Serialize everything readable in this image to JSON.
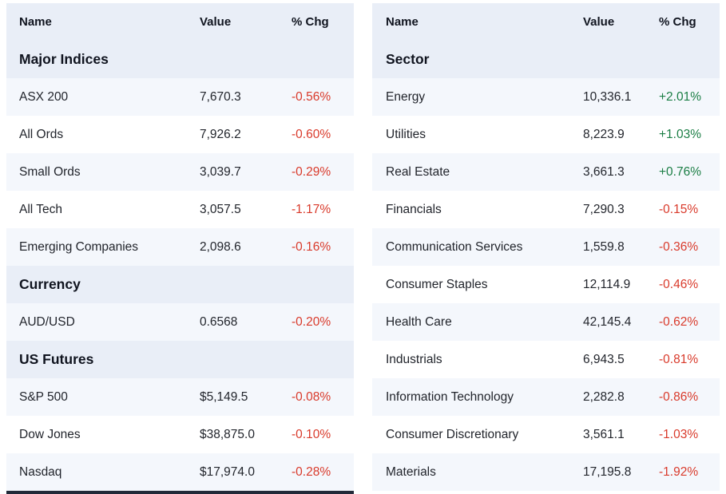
{
  "columns": {
    "name": "Name",
    "value": "Value",
    "chg": "% Chg"
  },
  "colors": {
    "positive": "#1b7e45",
    "negative": "#d93a2b",
    "header_bg": "#e9eef7",
    "stripe_bg": "#f4f7fc"
  },
  "tables": [
    {
      "name": "indices-table",
      "partial_row_visible": true,
      "sections": [
        {
          "label": "Major Indices",
          "rows": [
            {
              "name": "ASX 200",
              "value": "7,670.3",
              "chg": "-0.56%"
            },
            {
              "name": "All Ords",
              "value": "7,926.2",
              "chg": "-0.60%"
            },
            {
              "name": "Small Ords",
              "value": "3,039.7",
              "chg": "-0.29%"
            },
            {
              "name": "All Tech",
              "value": "3,057.5",
              "chg": "-1.17%"
            },
            {
              "name": "Emerging Companies",
              "value": "2,098.6",
              "chg": "-0.16%"
            }
          ]
        },
        {
          "label": "Currency",
          "rows": [
            {
              "name": "AUD/USD",
              "value": "0.6568",
              "chg": "-0.20%"
            }
          ]
        },
        {
          "label": "US Futures",
          "rows": [
            {
              "name": "S&P 500",
              "value": "$5,149.5",
              "chg": "-0.08%"
            },
            {
              "name": "Dow Jones",
              "value": "$38,875.0",
              "chg": "-0.10%"
            },
            {
              "name": "Nasdaq",
              "value": "$17,974.0",
              "chg": "-0.28%"
            }
          ]
        }
      ]
    },
    {
      "name": "sector-table",
      "partial_row_visible": false,
      "sections": [
        {
          "label": "Sector",
          "rows": [
            {
              "name": "Energy",
              "value": "10,336.1",
              "chg": "+2.01%"
            },
            {
              "name": "Utilities",
              "value": "8,223.9",
              "chg": "+1.03%"
            },
            {
              "name": "Real Estate",
              "value": "3,661.3",
              "chg": "+0.76%"
            },
            {
              "name": "Financials",
              "value": "7,290.3",
              "chg": "-0.15%"
            },
            {
              "name": "Communication Services",
              "value": "1,559.8",
              "chg": "-0.36%"
            },
            {
              "name": "Consumer Staples",
              "value": "12,114.9",
              "chg": "-0.46%"
            },
            {
              "name": "Health Care",
              "value": "42,145.4",
              "chg": "-0.62%"
            },
            {
              "name": "Industrials",
              "value": "6,943.5",
              "chg": "-0.81%"
            },
            {
              "name": "Information Technology",
              "value": "2,282.8",
              "chg": "-0.86%"
            },
            {
              "name": "Consumer Discretionary",
              "value": "3,561.1",
              "chg": "-1.03%"
            },
            {
              "name": "Materials",
              "value": "17,195.8",
              "chg": "-1.92%"
            }
          ]
        }
      ]
    }
  ]
}
